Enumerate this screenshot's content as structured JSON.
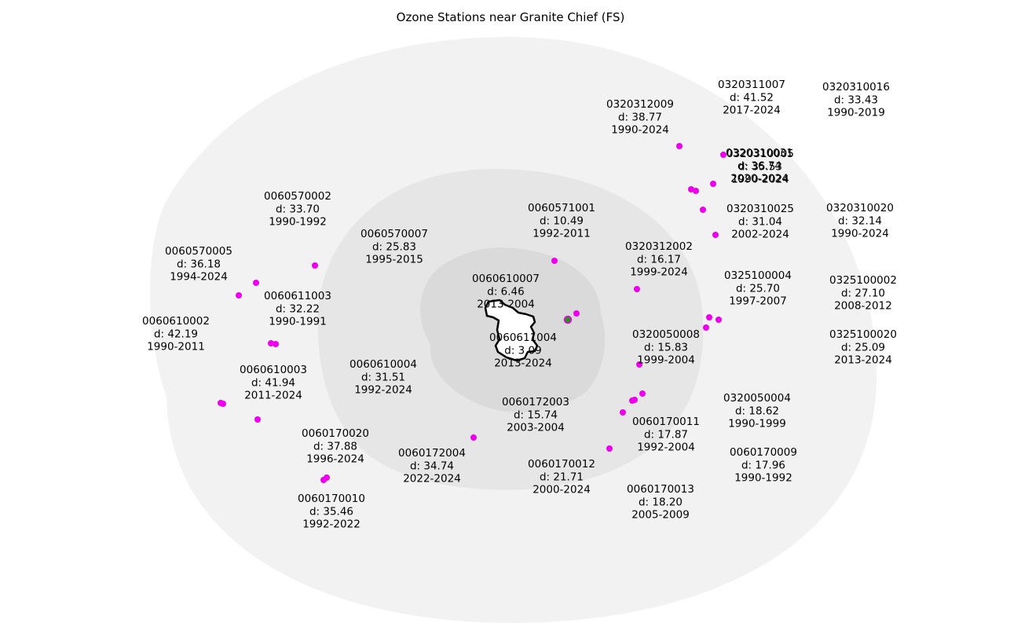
{
  "title": "Ozone Stations near Granite Chief (FS)",
  "colors": {
    "ring_outer": "#f2f2f2",
    "ring_middle": "#e6e6e6",
    "ring_inner": "#dadada",
    "station": "#ee00ee",
    "center_marker": "#2e8b22",
    "boundary_fill": "#ffffff",
    "boundary_stroke": "#000000"
  },
  "stations": [
    {
      "id": "0320311007",
      "distance": "d: 41.52",
      "years": "2017-2024"
    },
    {
      "id": "0320310016",
      "distance": "d: 33.43",
      "years": "1990-2019"
    },
    {
      "id": "0320312009",
      "distance": "d: 38.77",
      "years": "1990-2024"
    },
    {
      "id": "0320310031",
      "distance": "d: 36.74",
      "years": "2020-2024"
    },
    {
      "id": "0320310005",
      "distance": "d: 35.53",
      "years": "1990-2024"
    },
    {
      "id": "0060570002",
      "distance": "d: 33.70",
      "years": "1990-1992"
    },
    {
      "id": "0060571001",
      "distance": "d: 10.49",
      "years": "1992-2011"
    },
    {
      "id": "0320310025",
      "distance": "d: 31.04",
      "years": "2002-2024"
    },
    {
      "id": "0320310020",
      "distance": "d: 32.14",
      "years": "1990-2024"
    },
    {
      "id": "0060570007",
      "distance": "d: 25.83",
      "years": "1995-2015"
    },
    {
      "id": "0060570005",
      "distance": "d: 36.18",
      "years": "1994-2024"
    },
    {
      "id": "0320312002",
      "distance": "d: 16.17",
      "years": "1999-2024"
    },
    {
      "id": "0060610007",
      "distance": "d: 6.46",
      "years": "2013-2004"
    },
    {
      "id": "0325100004",
      "distance": "d: 25.70",
      "years": "1997-2007"
    },
    {
      "id": "0325100002",
      "distance": "d: 27.10",
      "years": "2008-2012"
    },
    {
      "id": "0060611003",
      "distance": "d: 32.22",
      "years": "1990-1991"
    },
    {
      "id": "0060610002",
      "distance": "d: 42.19",
      "years": "1990-2011"
    },
    {
      "id": "0060611004",
      "distance": "d: 3.09",
      "years": "2013-2024"
    },
    {
      "id": "0320050008",
      "distance": "d: 15.83",
      "years": "1999-2004"
    },
    {
      "id": "0325100020",
      "distance": "d: 25.09",
      "years": "2013-2024"
    },
    {
      "id": "0060610004",
      "distance": "d: 31.51",
      "years": "1992-2024"
    },
    {
      "id": "0060610003",
      "distance": "d: 41.94",
      "years": "2011-2024"
    },
    {
      "id": "0060172003",
      "distance": "d: 15.74",
      "years": "2003-2004"
    },
    {
      "id": "0320050004",
      "distance": "d: 18.62",
      "years": "1990-1999"
    },
    {
      "id": "0060170011",
      "distance": "d: 17.87",
      "years": "1992-2004"
    },
    {
      "id": "0060170020",
      "distance": "d: 37.88",
      "years": "1996-2024"
    },
    {
      "id": "0060170009",
      "distance": "d: 17.96",
      "years": "1990-1992"
    },
    {
      "id": "0060172004",
      "distance": "d: 34.74",
      "years": "2022-2024"
    },
    {
      "id": "0060170012",
      "distance": "d: 21.71",
      "years": "2000-2024"
    },
    {
      "id": "0060170013",
      "distance": "d: 18.20",
      "years": "2005-2009"
    },
    {
      "id": "0060170010",
      "distance": "d: 35.46",
      "years": "1992-2022"
    }
  ]
}
